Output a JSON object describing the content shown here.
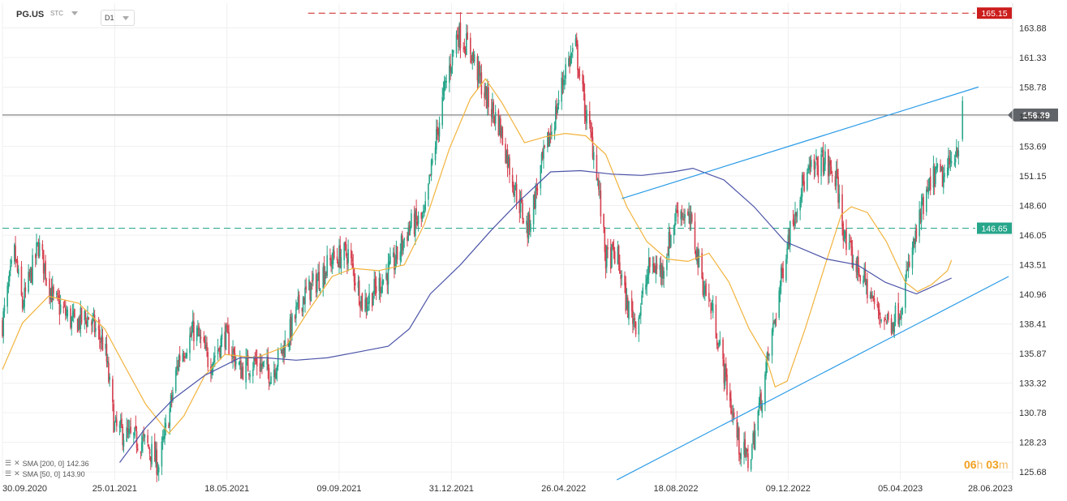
{
  "toolbar": {
    "symbol": "PG.US",
    "type": "STC",
    "timeframe": "D1"
  },
  "legend": [
    {
      "label": "SMA [200, 0]",
      "value": "142.36",
      "color": "#4c54a8"
    },
    {
      "label": "SMA [50, 0]",
      "value": "143.90",
      "color": "#f2b33d"
    }
  ],
  "timer": {
    "hours": "06",
    "h_unit": "h",
    "minutes": "03",
    "m_unit": "m"
  },
  "colors": {
    "up": "#26a68a",
    "down": "#d64050",
    "sma200": "#4c54a8",
    "sma50": "#f2b33d",
    "trend": "#2a9be8",
    "resistance": "#cc1d1d",
    "support": "#26a68a",
    "price": "#606468"
  },
  "chart_data": {
    "type": "candlestick",
    "x_ticks": [
      "30.09.2020",
      "25.01.2021",
      "18.05.2021",
      "09.09.2021",
      "31.12.2021",
      "26.04.2022",
      "18.08.2022",
      "09.12.2022",
      "05.04.2023",
      "28.06.2023"
    ],
    "y_ticks": [
      125.68,
      128.23,
      130.78,
      133.32,
      135.87,
      138.41,
      140.96,
      143.51,
      146.05,
      148.6,
      151.15,
      153.69,
      156.24,
      158.78,
      161.33,
      163.88
    ],
    "ylim": [
      125.0,
      166.0
    ],
    "x_range": [
      "2020-09-30",
      "2023-07-05"
    ],
    "current_price": 156.39,
    "levels": [
      {
        "name": "resistance",
        "value": 165.15,
        "label": "165.15",
        "style": "dashed",
        "color": "#cc1d1d"
      },
      {
        "name": "support",
        "value": 146.65,
        "label": "146.65",
        "style": "dashed",
        "color": "#26a68a"
      }
    ],
    "close_path": [
      [
        "2020-09-30",
        138.5
      ],
      [
        "2020-10-12",
        144.5
      ],
      [
        "2020-10-20",
        140.0
      ],
      [
        "2020-11-05",
        145.2
      ],
      [
        "2020-11-20",
        140.5
      ],
      [
        "2020-12-10",
        138.5
      ],
      [
        "2020-12-25",
        139.0
      ],
      [
        "2021-01-10",
        136.5
      ],
      [
        "2021-01-20",
        129.5
      ],
      [
        "2021-02-05",
        128.6
      ],
      [
        "2021-02-20",
        128.2
      ],
      [
        "2021-03-05",
        126.2
      ],
      [
        "2021-03-15",
        130.5
      ],
      [
        "2021-03-25",
        135.5
      ],
      [
        "2021-04-10",
        138.0
      ],
      [
        "2021-04-25",
        135.0
      ],
      [
        "2021-05-10",
        137.5
      ],
      [
        "2021-05-25",
        134.5
      ],
      [
        "2021-06-10",
        135.2
      ],
      [
        "2021-06-25",
        134.2
      ],
      [
        "2021-07-10",
        136.8
      ],
      [
        "2021-07-25",
        140.5
      ],
      [
        "2021-08-10",
        142.2
      ],
      [
        "2021-08-25",
        144.0
      ],
      [
        "2021-09-10",
        144.5
      ],
      [
        "2021-09-25",
        140.0
      ],
      [
        "2021-10-08",
        141.5
      ],
      [
        "2021-10-25",
        143.5
      ],
      [
        "2021-11-10",
        146.8
      ],
      [
        "2021-11-25",
        147.5
      ],
      [
        "2021-12-05",
        153.5
      ],
      [
        "2021-12-15",
        158.5
      ],
      [
        "2021-12-28",
        163.5
      ],
      [
        "2022-01-10",
        162.0
      ],
      [
        "2022-01-25",
        158.0
      ],
      [
        "2022-02-08",
        155.5
      ],
      [
        "2022-02-22",
        150.5
      ],
      [
        "2022-03-08",
        146.5
      ],
      [
        "2022-03-22",
        152.0
      ],
      [
        "2022-04-05",
        156.5
      ],
      [
        "2022-04-15",
        160.5
      ],
      [
        "2022-04-25",
        162.2
      ],
      [
        "2022-05-05",
        156.5
      ],
      [
        "2022-05-15",
        152.5
      ],
      [
        "2022-05-25",
        144.0
      ],
      [
        "2022-06-05",
        144.5
      ],
      [
        "2022-06-15",
        140.0
      ],
      [
        "2022-06-25",
        138.5
      ],
      [
        "2022-07-08",
        143.5
      ],
      [
        "2022-07-20",
        143.0
      ],
      [
        "2022-08-05",
        148.5
      ],
      [
        "2022-08-18",
        147.0
      ],
      [
        "2022-08-30",
        142.0
      ],
      [
        "2022-09-10",
        139.0
      ],
      [
        "2022-09-22",
        133.5
      ],
      [
        "2022-10-05",
        128.0
      ],
      [
        "2022-10-15",
        126.5
      ],
      [
        "2022-10-28",
        132.5
      ],
      [
        "2022-11-10",
        139.0
      ],
      [
        "2022-11-22",
        145.5
      ],
      [
        "2022-12-05",
        150.0
      ],
      [
        "2022-12-15",
        151.5
      ],
      [
        "2022-12-28",
        152.5
      ],
      [
        "2023-01-10",
        150.8
      ],
      [
        "2023-01-20",
        145.0
      ],
      [
        "2023-02-05",
        142.5
      ],
      [
        "2023-02-20",
        139.5
      ],
      [
        "2023-03-05",
        138.5
      ],
      [
        "2023-03-15",
        139.8
      ],
      [
        "2023-03-25",
        144.0
      ],
      [
        "2023-04-05",
        148.0
      ],
      [
        "2023-04-18",
        151.3
      ],
      [
        "2023-04-28",
        151.0
      ],
      [
        "2023-05-12",
        154.0
      ],
      [
        "2023-05-16",
        156.39
      ]
    ],
    "sma50": [
      [
        "2020-09-30",
        134.5
      ],
      [
        "2020-10-20",
        138.5
      ],
      [
        "2020-11-15",
        140.8
      ],
      [
        "2020-12-15",
        140.2
      ],
      [
        "2021-01-10",
        138.0
      ],
      [
        "2021-01-30",
        134.8
      ],
      [
        "2021-02-20",
        131.5
      ],
      [
        "2021-03-15",
        129.0
      ],
      [
        "2021-03-30",
        130.5
      ],
      [
        "2021-04-20",
        134.0
      ],
      [
        "2021-05-10",
        135.8
      ],
      [
        "2021-06-10",
        135.5
      ],
      [
        "2021-07-10",
        136.5
      ],
      [
        "2021-08-01",
        139.5
      ],
      [
        "2021-08-25",
        142.5
      ],
      [
        "2021-09-15",
        143.2
      ],
      [
        "2021-10-10",
        143.0
      ],
      [
        "2021-11-05",
        143.5
      ],
      [
        "2021-11-25",
        147.0
      ],
      [
        "2021-12-20",
        153.5
      ],
      [
        "2022-01-10",
        157.8
      ],
      [
        "2022-01-25",
        159.5
      ],
      [
        "2022-02-10",
        157.5
      ],
      [
        "2022-03-05",
        154.0
      ],
      [
        "2022-03-25",
        154.5
      ],
      [
        "2022-04-15",
        154.8
      ],
      [
        "2022-05-05",
        154.6
      ],
      [
        "2022-05-25",
        153.0
      ],
      [
        "2022-06-15",
        148.5
      ],
      [
        "2022-07-05",
        145.5
      ],
      [
        "2022-07-25",
        144.0
      ],
      [
        "2022-08-15",
        143.8
      ],
      [
        "2022-09-05",
        144.5
      ],
      [
        "2022-09-25",
        142.0
      ],
      [
        "2022-10-15",
        138.0
      ],
      [
        "2022-11-01",
        135.5
      ],
      [
        "2022-11-10",
        133.0
      ],
      [
        "2022-11-22",
        133.5
      ],
      [
        "2022-12-10",
        138.0
      ],
      [
        "2022-12-30",
        143.5
      ],
      [
        "2023-01-15",
        147.8
      ],
      [
        "2023-01-25",
        148.5
      ],
      [
        "2023-02-10",
        148.0
      ],
      [
        "2023-03-01",
        145.5
      ],
      [
        "2023-03-20",
        142.0
      ],
      [
        "2023-04-01",
        141.2
      ],
      [
        "2023-04-15",
        141.8
      ],
      [
        "2023-05-01",
        143.0
      ],
      [
        "2023-05-05",
        143.9
      ]
    ],
    "sma200": [
      [
        "2021-01-25",
        126.5
      ],
      [
        "2021-02-20",
        129.5
      ],
      [
        "2021-03-20",
        132.0
      ],
      [
        "2021-04-20",
        134.0
      ],
      [
        "2021-05-25",
        135.5
      ],
      [
        "2021-06-20",
        135.5
      ],
      [
        "2021-07-20",
        135.3
      ],
      [
        "2021-08-20",
        135.5
      ],
      [
        "2021-09-20",
        136.0
      ],
      [
        "2021-10-20",
        136.5
      ],
      [
        "2021-11-10",
        138.0
      ],
      [
        "2021-12-01",
        141.0
      ],
      [
        "2021-12-31",
        143.5
      ],
      [
        "2022-01-31",
        146.5
      ],
      [
        "2022-02-28",
        149.0
      ],
      [
        "2022-03-31",
        151.5
      ],
      [
        "2022-04-30",
        151.6
      ],
      [
        "2022-05-31",
        151.3
      ],
      [
        "2022-06-30",
        151.2
      ],
      [
        "2022-07-31",
        151.5
      ],
      [
        "2022-08-20",
        151.8
      ],
      [
        "2022-09-20",
        150.8
      ],
      [
        "2022-10-20",
        148.5
      ],
      [
        "2022-11-20",
        145.5
      ],
      [
        "2022-12-31",
        144.0
      ],
      [
        "2023-01-31",
        143.5
      ],
      [
        "2023-02-28",
        142.0
      ],
      [
        "2023-03-31",
        141.0
      ],
      [
        "2023-05-05",
        142.36
      ]
    ],
    "trendlines": [
      {
        "name": "channel-upper",
        "from": [
          "2022-06-10",
          149.2
        ],
        "to": [
          "2023-06-01",
          158.8
        ]
      },
      {
        "name": "channel-lower",
        "from": [
          "2022-06-05",
          125.0
        ],
        "to": [
          "2023-07-01",
          142.5
        ]
      }
    ]
  }
}
